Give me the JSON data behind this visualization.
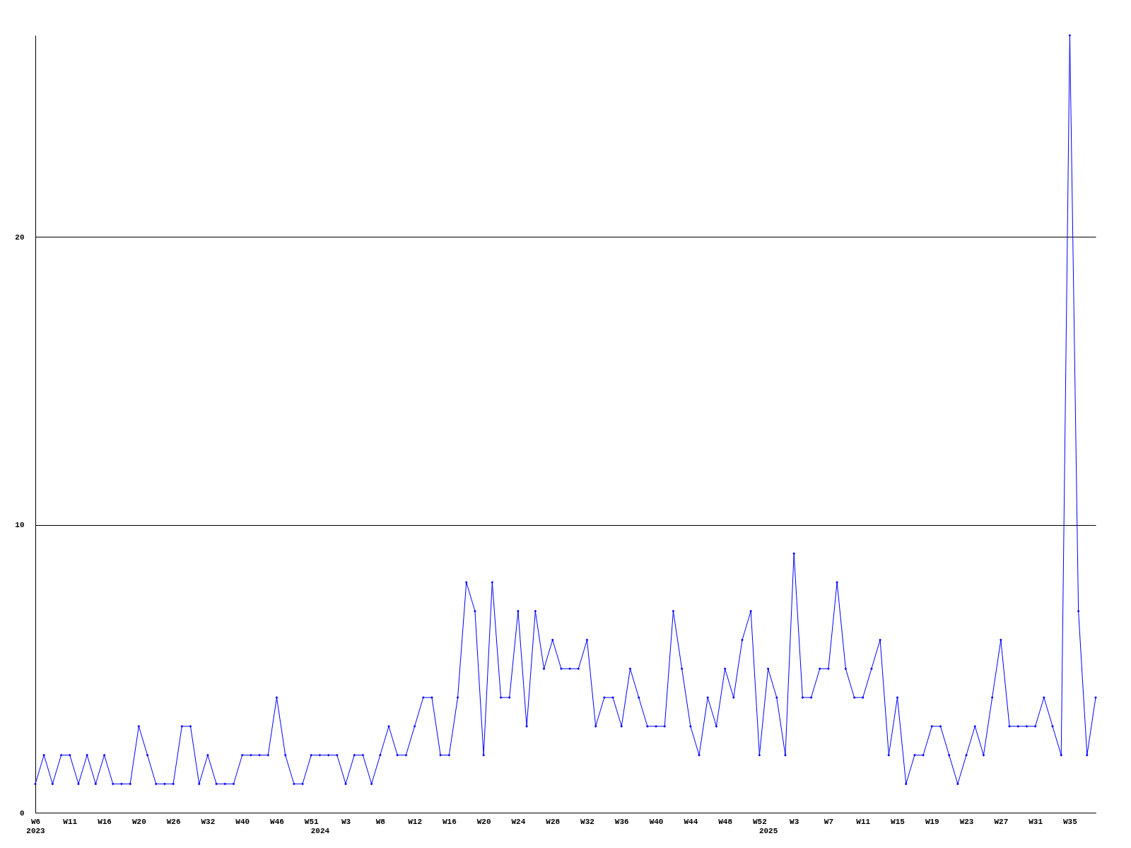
{
  "chart_data": {
    "type": "line",
    "categories": [
      "W6\n2023",
      null,
      null,
      null,
      "W11",
      null,
      null,
      null,
      "W16",
      null,
      null,
      null,
      "W20",
      null,
      null,
      null,
      "W26",
      null,
      null,
      null,
      "W32",
      null,
      null,
      null,
      "W40",
      null,
      null,
      null,
      "W46",
      null,
      null,
      null,
      "W51",
      "\n2024",
      null,
      null,
      "W3",
      null,
      null,
      null,
      "W8",
      null,
      null,
      null,
      "W12",
      null,
      null,
      null,
      "W16",
      null,
      null,
      null,
      "W20",
      null,
      null,
      null,
      "W24",
      null,
      null,
      null,
      "W28",
      null,
      null,
      null,
      "W32",
      null,
      null,
      null,
      "W36",
      null,
      null,
      null,
      "W40",
      null,
      null,
      null,
      "W44",
      null,
      null,
      null,
      "W48",
      null,
      null,
      null,
      "W52",
      "\n2025",
      null,
      null,
      "W3",
      null,
      null,
      null,
      "W7",
      null,
      null,
      null,
      "W11",
      null,
      null,
      null,
      "W15",
      null,
      null,
      null,
      "W19",
      null,
      null,
      null,
      "W23",
      null,
      null,
      null,
      "W27",
      null,
      null,
      null,
      "W31",
      null,
      null,
      null,
      "W35",
      null,
      null,
      null
    ],
    "series": [
      {
        "color": "#0000ff",
        "values": [
          1,
          2,
          1,
          2,
          2,
          1,
          2,
          1,
          2,
          1,
          1,
          1,
          3,
          2,
          1,
          1,
          1,
          3,
          3,
          1,
          2,
          1,
          1,
          1,
          2,
          2,
          2,
          2,
          4,
          2,
          1,
          1,
          2,
          2,
          2,
          2,
          1,
          2,
          2,
          1,
          2,
          3,
          2,
          2,
          3,
          4,
          4,
          2,
          2,
          4,
          8,
          7,
          2,
          8,
          4,
          4,
          7,
          3,
          7,
          5,
          6,
          5,
          5,
          5,
          6,
          3,
          4,
          4,
          3,
          5,
          4,
          3,
          3,
          3,
          7,
          5,
          3,
          2,
          4,
          3,
          5,
          4,
          6,
          7,
          2,
          5,
          4,
          2,
          9,
          4,
          4,
          5,
          5,
          8,
          5,
          4,
          4,
          5,
          6,
          2,
          4,
          1,
          2,
          2,
          3,
          3,
          2,
          1,
          2,
          3,
          2,
          4,
          6,
          3,
          3,
          3,
          3,
          4,
          3,
          2,
          27,
          7,
          2,
          4
        ]
      }
    ],
    "ylim": [
      0,
      27
    ],
    "yticks": [
      0,
      10,
      20
    ],
    "grid": "y",
    "marker": "diamond"
  }
}
